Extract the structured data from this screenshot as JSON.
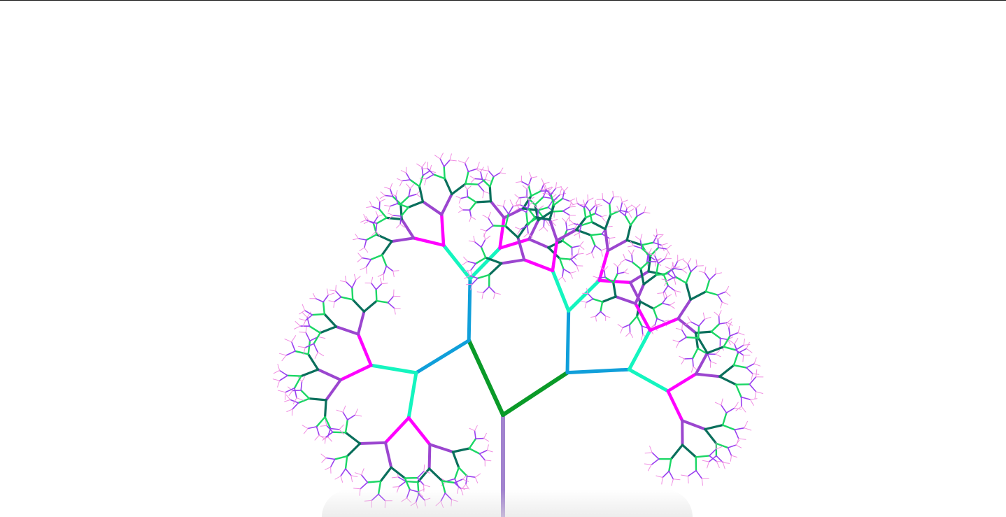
{
  "scene": {
    "background": "#ffffff",
    "border_color": "#1a1a1a",
    "trunk_color": "#a283cf"
  },
  "tree": {
    "max_depth": 9,
    "generation_colors": [
      "#a283cf",
      "#0a9a28",
      "#109fda",
      "#14f5bf",
      "#ff00ff",
      "#9b46cf",
      "#0a6f5c",
      "#1bd765",
      "#9a3ff0",
      "#f08ee2"
    ]
  }
}
